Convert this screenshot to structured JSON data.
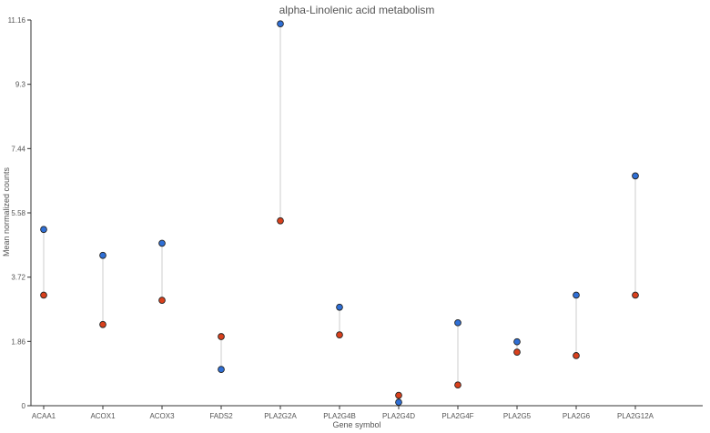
{
  "chart_data": {
    "type": "scatter",
    "title": "alpha-Linolenic acid metabolism",
    "xlabel": "Gene symbol",
    "ylabel": "Mean normalized counts",
    "categories": [
      "ACAA1",
      "ACOX1",
      "ACOX3",
      "FADS2",
      "PLA2G2A",
      "PLA2G4B",
      "PLA2G4D",
      "PLA2G4F",
      "PLA2G5",
      "PLA2G6",
      "PLA2G12A"
    ],
    "y_ticks": [
      "0",
      "1.86",
      "3.72",
      "5.58",
      "7.44",
      "9.3",
      "11.16"
    ],
    "ylim": [
      0,
      11.16
    ],
    "grid": false,
    "series": [
      {
        "color": "#2f6fd6",
        "values": [
          5.1,
          4.35,
          4.7,
          1.05,
          11.05,
          2.85,
          0.1,
          2.4,
          1.85,
          3.2,
          6.65
        ]
      },
      {
        "color": "#d9401c",
        "values": [
          3.2,
          2.35,
          3.05,
          2.0,
          5.35,
          2.05,
          0.3,
          0.6,
          1.55,
          1.45,
          3.2
        ]
      }
    ]
  }
}
